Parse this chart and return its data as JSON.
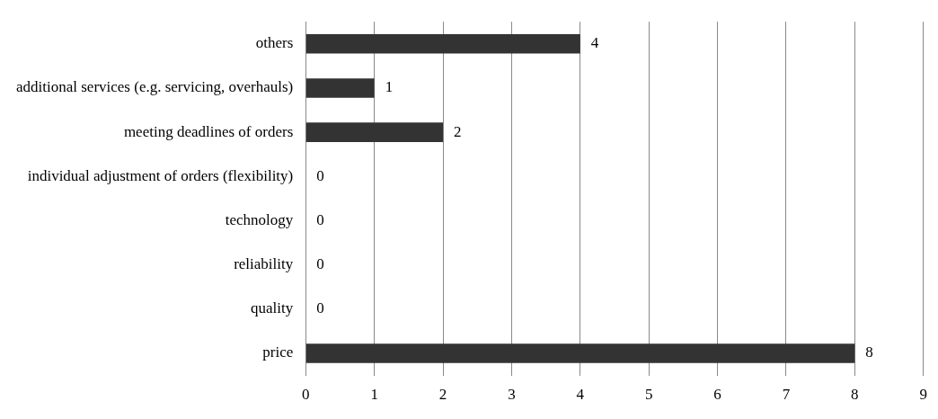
{
  "chart_data": {
    "type": "bar",
    "orientation": "horizontal",
    "categories": [
      "others",
      "additional services (e.g. servicing, overhauls)",
      "meeting deadlines of orders",
      "individual adjustment of orders (flexibility)",
      "technology",
      "reliability",
      "quality",
      "price"
    ],
    "values": [
      4,
      1,
      2,
      0,
      0,
      0,
      0,
      8
    ],
    "color": "#333333",
    "xlim": [
      0,
      9
    ],
    "xticks": [
      0,
      1,
      2,
      3,
      4,
      5,
      6,
      7,
      8,
      9
    ],
    "grid": "x",
    "data_labels": true,
    "legend": false
  }
}
